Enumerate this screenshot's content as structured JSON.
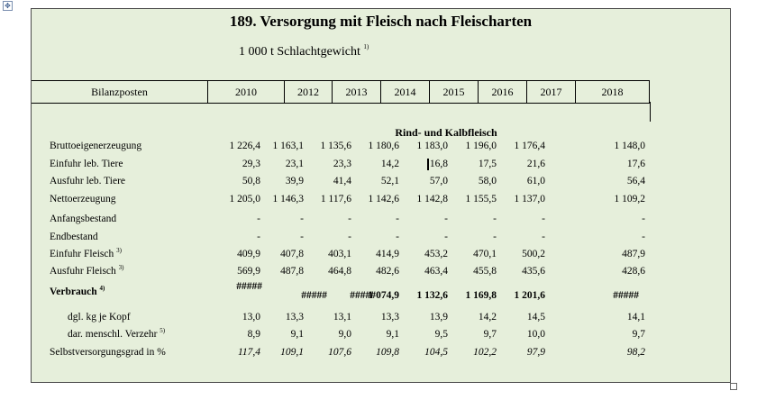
{
  "table": {
    "title": "189. Versorgung mit Fleisch nach Fleischarten",
    "unit": "1 000 t Schlachtgewicht",
    "unit_footnote": "1)",
    "header_label": "Bilanzposten",
    "years": [
      "2010",
      "2012",
      "2013",
      "2014",
      "2015",
      "2016",
      "2017",
      "2018"
    ],
    "section_title": "Rind- und Kalbfleisch",
    "rows": [
      {
        "label": "Bruttoeigenerzeugung",
        "note": "",
        "values": [
          "1 226,4",
          "1 163,1",
          "1 135,6",
          "1 180,6",
          "1 183,0",
          "1 196,0",
          "1 176,4",
          "1 148,0"
        ]
      },
      {
        "label": "Einfuhr leb. Tiere",
        "note": "",
        "values": [
          "29,3",
          "23,1",
          "23,3",
          "14,2",
          "16,8",
          "17,5",
          "21,6",
          "17,6"
        ]
      },
      {
        "label": "Ausfuhr leb. Tiere",
        "note": "",
        "values": [
          "50,8",
          "39,9",
          "41,4",
          "52,1",
          "57,0",
          "58,0",
          "61,0",
          "56,4"
        ]
      },
      {
        "label": "Nettoerzeugung",
        "note": "",
        "values": [
          "1 205,0",
          "1 146,3",
          "1 117,6",
          "1 142,6",
          "1 142,8",
          "1 155,5",
          "1 137,0",
          "1 109,2"
        ]
      },
      {
        "label": "Anfangsbestand",
        "note": "",
        "values": [
          "-",
          "-",
          "-",
          "-",
          "-",
          "-",
          "-",
          "-"
        ]
      },
      {
        "label": "Endbestand",
        "note": "",
        "values": [
          "-",
          "-",
          "-",
          "-",
          "-",
          "-",
          "-",
          "-"
        ]
      },
      {
        "label": "Einfuhr Fleisch",
        "note": "3)",
        "values": [
          "409,9",
          "407,8",
          "403,1",
          "414,9",
          "453,2",
          "470,1",
          "500,2",
          "487,9"
        ]
      },
      {
        "label": "Ausfuhr Fleisch",
        "note": "3)",
        "values": [
          "569,9",
          "487,8",
          "464,8",
          "482,6",
          "463,4",
          "455,8",
          "435,6",
          "428,6"
        ]
      },
      {
        "label": "Verbrauch",
        "note": "4)",
        "values": [
          "#####",
          "#####",
          "#####",
          "1 074,9",
          "1 132,6",
          "1 169,8",
          "1 201,6",
          "#####"
        ]
      },
      {
        "label": "dgl. kg je Kopf",
        "note": "",
        "values": [
          "13,0",
          "13,3",
          "13,1",
          "13,3",
          "13,9",
          "14,2",
          "14,5",
          "14,1"
        ]
      },
      {
        "label": "dar. menschl. Verzehr",
        "note": "5)",
        "values": [
          "8,9",
          "9,1",
          "9,0",
          "9,1",
          "9,5",
          "9,7",
          "10,0",
          "9,7"
        ]
      },
      {
        "label": "Selbstversorgungsgrad in %",
        "note": "",
        "values": [
          "117,4",
          "109,1",
          "107,6",
          "109,8",
          "104,5",
          "102,2",
          "97,9",
          "98,2"
        ]
      }
    ]
  }
}
